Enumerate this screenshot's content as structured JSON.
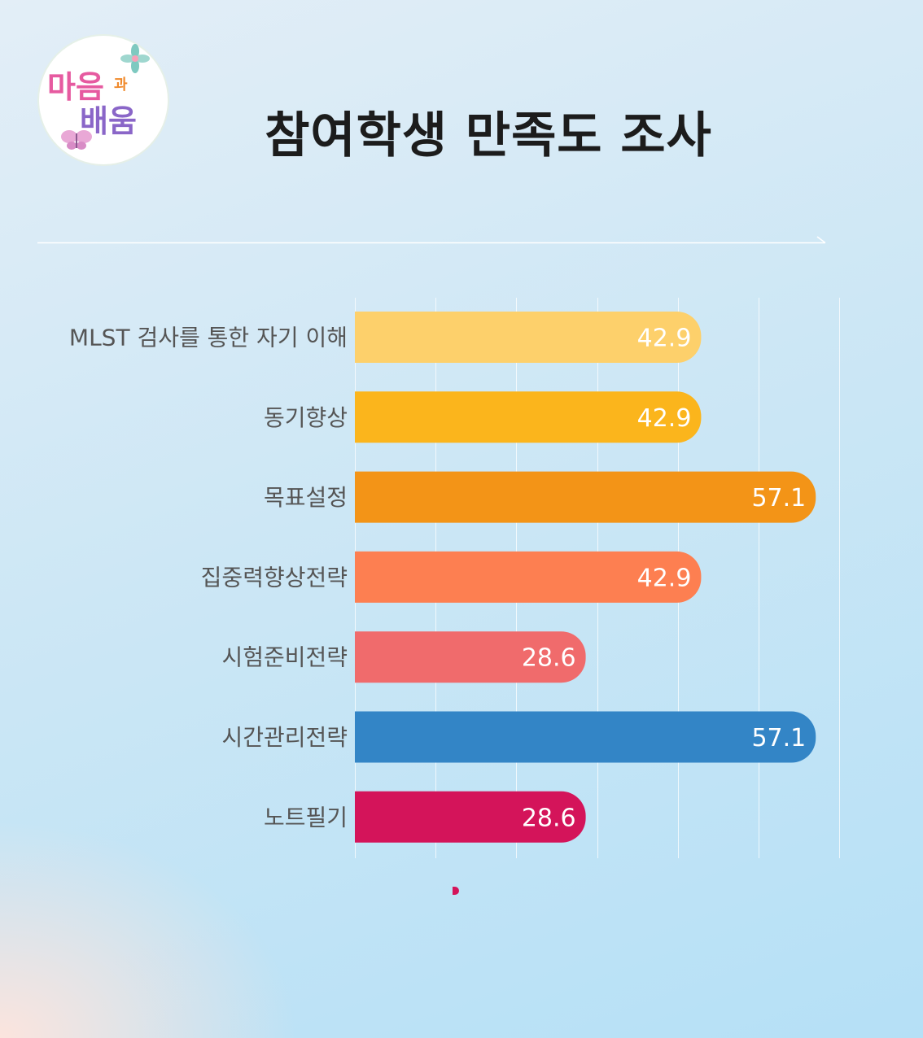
{
  "header": {
    "title": "참여학생 만족도 조사",
    "logo": {
      "line1": "마음",
      "small": "과",
      "line2": "배움"
    }
  },
  "chart_data": {
    "type": "bar",
    "orientation": "horizontal",
    "title": "참여학생 만족도 조사",
    "xlabel": "",
    "ylabel": "",
    "xlim": [
      0,
      60
    ],
    "grid": true,
    "categories": [
      "MLST 검사를 통한 자기 이해",
      "동기향상",
      "목표설정",
      "집중력향상전략",
      "시험준비전략",
      "시간관리전략",
      "노트필기"
    ],
    "values": [
      42.9,
      42.9,
      57.1,
      42.9,
      28.6,
      57.1,
      28.6
    ],
    "value_labels": [
      "42.9",
      "42.9",
      "57.1",
      "42.9",
      "28.6",
      "57.1",
      "28.6"
    ],
    "colors": [
      "#fdd06b",
      "#fbb51c",
      "#f39417",
      "#fd7f51",
      "#f06b6c",
      "#3385c6",
      "#d4145a"
    ]
  }
}
